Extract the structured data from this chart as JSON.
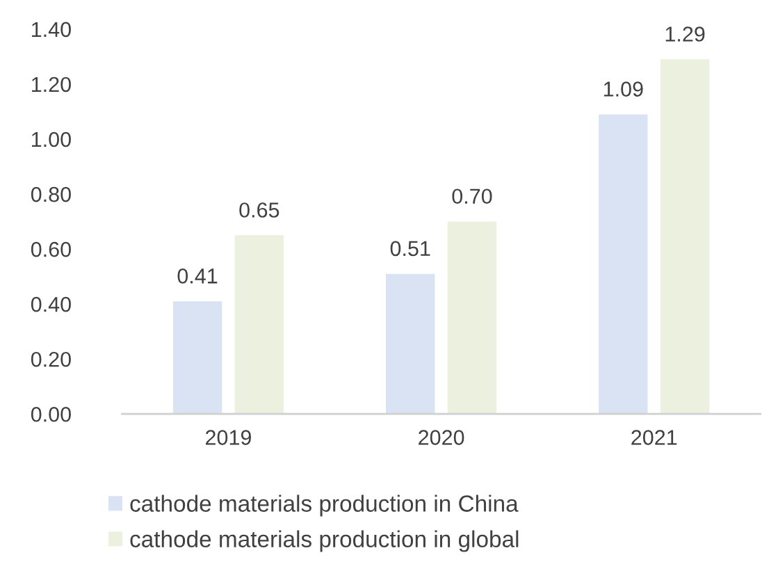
{
  "chart_data": {
    "type": "bar",
    "categories": [
      "2019",
      "2020",
      "2021"
    ],
    "series": [
      {
        "name": "cathode materials production in China",
        "color": "#dae3f3",
        "values": [
          0.41,
          0.51,
          1.09
        ]
      },
      {
        "name": "cathode materials production in global",
        "color": "#ebf1de",
        "values": [
          0.65,
          0.7,
          1.29
        ]
      }
    ],
    "ylim": [
      0,
      1.4
    ],
    "yticks": [
      {
        "value": 0,
        "label": "0.00"
      },
      {
        "value": 0.2,
        "label": "0.20"
      },
      {
        "value": 0.4,
        "label": "0.40"
      },
      {
        "value": 0.6,
        "label": "0.60"
      },
      {
        "value": 0.8,
        "label": "0.80"
      },
      {
        "value": 1.0,
        "label": "1.00"
      },
      {
        "value": 1.2,
        "label": "1.20"
      },
      {
        "value": 1.4,
        "label": "1.40"
      }
    ],
    "value_labels": [
      [
        "0.41",
        "0.51",
        "1.09"
      ],
      [
        "0.65",
        "0.70",
        "1.29"
      ]
    ],
    "grid": false,
    "legend": "bottom"
  }
}
